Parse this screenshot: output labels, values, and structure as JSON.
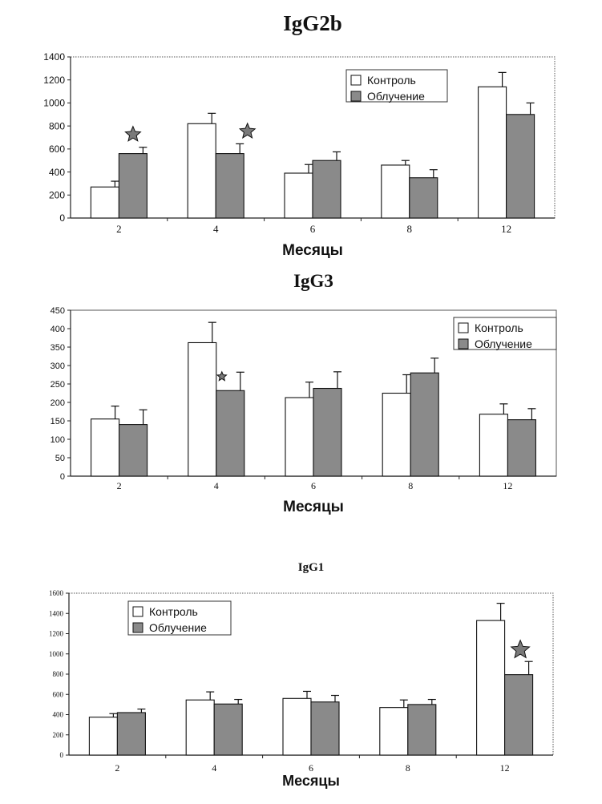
{
  "chart_data": [
    {
      "type": "bar",
      "title": "IgG2b",
      "xlabel": "Месяцы",
      "ylabel": "",
      "categories": [
        "2",
        "4",
        "6",
        "8",
        "12"
      ],
      "ylim": [
        0,
        1400
      ],
      "yticks": [
        "0",
        "200",
        "400",
        "600",
        "800",
        "1000",
        "1200",
        "1400"
      ],
      "legend": {
        "position": "top-right"
      },
      "series": [
        {
          "name": "Контроль",
          "color": "#ffffff",
          "values": [
            270,
            820,
            390,
            460,
            1140
          ],
          "errors": [
            50,
            90,
            75,
            40,
            125
          ]
        },
        {
          "name": "Облучение",
          "color": "#8a8a8a",
          "values": [
            560,
            560,
            500,
            350,
            900
          ],
          "errors": [
            55,
            85,
            75,
            70,
            100
          ]
        }
      ],
      "significance": [
        {
          "category": "2",
          "series": "Облучение"
        },
        {
          "category": "4",
          "series": "Облучение"
        }
      ]
    },
    {
      "type": "bar",
      "title": "IgG3",
      "xlabel": "Месяцы",
      "ylabel": "",
      "categories": [
        "2",
        "4",
        "6",
        "8",
        "12"
      ],
      "ylim": [
        0,
        450
      ],
      "yticks": [
        "0",
        "50",
        "100",
        "150",
        "200",
        "250",
        "300",
        "350",
        "400",
        "450"
      ],
      "legend": {
        "position": "top-right"
      },
      "series": [
        {
          "name": "Контроль",
          "color": "#ffffff",
          "values": [
            155,
            362,
            213,
            225,
            168
          ],
          "errors": [
            35,
            55,
            42,
            50,
            28
          ]
        },
        {
          "name": "Облучение",
          "color": "#8a8a8a",
          "values": [
            140,
            232,
            238,
            280,
            153
          ],
          "errors": [
            40,
            50,
            45,
            40,
            30
          ]
        }
      ],
      "significance": [
        {
          "category": "4",
          "series": "Облучение"
        }
      ]
    },
    {
      "type": "bar",
      "title": "IgG1",
      "xlabel": "Месяцы",
      "ylabel": "",
      "categories": [
        "2",
        "4",
        "6",
        "8",
        "12"
      ],
      "ylim": [
        0,
        1600
      ],
      "yticks": [
        "0",
        "200",
        "400",
        "600",
        "800",
        "1000",
        "1200",
        "1400",
        "1600"
      ],
      "legend": {
        "position": "top-left"
      },
      "series": [
        {
          "name": "Контроль",
          "color": "#ffffff",
          "values": [
            375,
            545,
            560,
            470,
            1330
          ],
          "errors": [
            35,
            80,
            70,
            75,
            170
          ]
        },
        {
          "name": "Облучение",
          "color": "#8a8a8a",
          "values": [
            420,
            505,
            525,
            500,
            795
          ],
          "errors": [
            35,
            45,
            65,
            50,
            130
          ]
        }
      ],
      "significance": [
        {
          "category": "12",
          "series": "Облучение"
        }
      ]
    }
  ]
}
